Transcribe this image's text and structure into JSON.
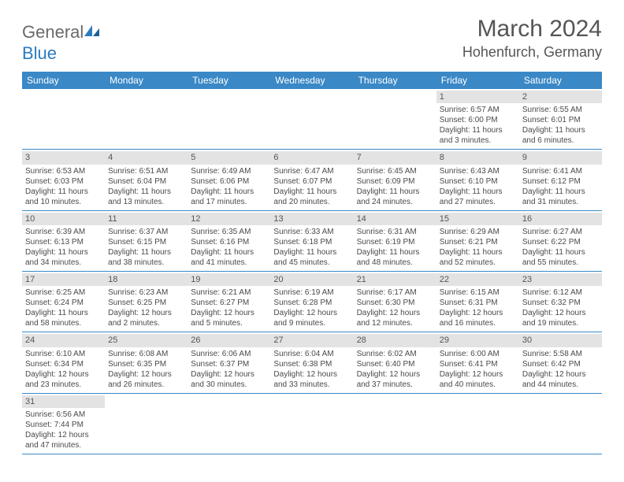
{
  "logo": {
    "text_general": "General",
    "text_blue": "Blue"
  },
  "header": {
    "month": "March 2024",
    "location": "Hohenfurch, Germany"
  },
  "colors": {
    "header_bg": "#3a88c6",
    "header_text": "#ffffff",
    "daynum_bg": "#e3e3e3",
    "row_border": "#3a88c6",
    "brand_grey": "#6a6a6a",
    "brand_blue": "#2b7bbf"
  },
  "columns": [
    "Sunday",
    "Monday",
    "Tuesday",
    "Wednesday",
    "Thursday",
    "Friday",
    "Saturday"
  ],
  "weeks": [
    [
      {
        "n": "",
        "sr": "",
        "ss": "",
        "dl": ""
      },
      {
        "n": "",
        "sr": "",
        "ss": "",
        "dl": ""
      },
      {
        "n": "",
        "sr": "",
        "ss": "",
        "dl": ""
      },
      {
        "n": "",
        "sr": "",
        "ss": "",
        "dl": ""
      },
      {
        "n": "",
        "sr": "",
        "ss": "",
        "dl": ""
      },
      {
        "n": "1",
        "sr": "Sunrise: 6:57 AM",
        "ss": "Sunset: 6:00 PM",
        "dl": "Daylight: 11 hours and 3 minutes."
      },
      {
        "n": "2",
        "sr": "Sunrise: 6:55 AM",
        "ss": "Sunset: 6:01 PM",
        "dl": "Daylight: 11 hours and 6 minutes."
      }
    ],
    [
      {
        "n": "3",
        "sr": "Sunrise: 6:53 AM",
        "ss": "Sunset: 6:03 PM",
        "dl": "Daylight: 11 hours and 10 minutes."
      },
      {
        "n": "4",
        "sr": "Sunrise: 6:51 AM",
        "ss": "Sunset: 6:04 PM",
        "dl": "Daylight: 11 hours and 13 minutes."
      },
      {
        "n": "5",
        "sr": "Sunrise: 6:49 AM",
        "ss": "Sunset: 6:06 PM",
        "dl": "Daylight: 11 hours and 17 minutes."
      },
      {
        "n": "6",
        "sr": "Sunrise: 6:47 AM",
        "ss": "Sunset: 6:07 PM",
        "dl": "Daylight: 11 hours and 20 minutes."
      },
      {
        "n": "7",
        "sr": "Sunrise: 6:45 AM",
        "ss": "Sunset: 6:09 PM",
        "dl": "Daylight: 11 hours and 24 minutes."
      },
      {
        "n": "8",
        "sr": "Sunrise: 6:43 AM",
        "ss": "Sunset: 6:10 PM",
        "dl": "Daylight: 11 hours and 27 minutes."
      },
      {
        "n": "9",
        "sr": "Sunrise: 6:41 AM",
        "ss": "Sunset: 6:12 PM",
        "dl": "Daylight: 11 hours and 31 minutes."
      }
    ],
    [
      {
        "n": "10",
        "sr": "Sunrise: 6:39 AM",
        "ss": "Sunset: 6:13 PM",
        "dl": "Daylight: 11 hours and 34 minutes."
      },
      {
        "n": "11",
        "sr": "Sunrise: 6:37 AM",
        "ss": "Sunset: 6:15 PM",
        "dl": "Daylight: 11 hours and 38 minutes."
      },
      {
        "n": "12",
        "sr": "Sunrise: 6:35 AM",
        "ss": "Sunset: 6:16 PM",
        "dl": "Daylight: 11 hours and 41 minutes."
      },
      {
        "n": "13",
        "sr": "Sunrise: 6:33 AM",
        "ss": "Sunset: 6:18 PM",
        "dl": "Daylight: 11 hours and 45 minutes."
      },
      {
        "n": "14",
        "sr": "Sunrise: 6:31 AM",
        "ss": "Sunset: 6:19 PM",
        "dl": "Daylight: 11 hours and 48 minutes."
      },
      {
        "n": "15",
        "sr": "Sunrise: 6:29 AM",
        "ss": "Sunset: 6:21 PM",
        "dl": "Daylight: 11 hours and 52 minutes."
      },
      {
        "n": "16",
        "sr": "Sunrise: 6:27 AM",
        "ss": "Sunset: 6:22 PM",
        "dl": "Daylight: 11 hours and 55 minutes."
      }
    ],
    [
      {
        "n": "17",
        "sr": "Sunrise: 6:25 AM",
        "ss": "Sunset: 6:24 PM",
        "dl": "Daylight: 11 hours and 58 minutes."
      },
      {
        "n": "18",
        "sr": "Sunrise: 6:23 AM",
        "ss": "Sunset: 6:25 PM",
        "dl": "Daylight: 12 hours and 2 minutes."
      },
      {
        "n": "19",
        "sr": "Sunrise: 6:21 AM",
        "ss": "Sunset: 6:27 PM",
        "dl": "Daylight: 12 hours and 5 minutes."
      },
      {
        "n": "20",
        "sr": "Sunrise: 6:19 AM",
        "ss": "Sunset: 6:28 PM",
        "dl": "Daylight: 12 hours and 9 minutes."
      },
      {
        "n": "21",
        "sr": "Sunrise: 6:17 AM",
        "ss": "Sunset: 6:30 PM",
        "dl": "Daylight: 12 hours and 12 minutes."
      },
      {
        "n": "22",
        "sr": "Sunrise: 6:15 AM",
        "ss": "Sunset: 6:31 PM",
        "dl": "Daylight: 12 hours and 16 minutes."
      },
      {
        "n": "23",
        "sr": "Sunrise: 6:12 AM",
        "ss": "Sunset: 6:32 PM",
        "dl": "Daylight: 12 hours and 19 minutes."
      }
    ],
    [
      {
        "n": "24",
        "sr": "Sunrise: 6:10 AM",
        "ss": "Sunset: 6:34 PM",
        "dl": "Daylight: 12 hours and 23 minutes."
      },
      {
        "n": "25",
        "sr": "Sunrise: 6:08 AM",
        "ss": "Sunset: 6:35 PM",
        "dl": "Daylight: 12 hours and 26 minutes."
      },
      {
        "n": "26",
        "sr": "Sunrise: 6:06 AM",
        "ss": "Sunset: 6:37 PM",
        "dl": "Daylight: 12 hours and 30 minutes."
      },
      {
        "n": "27",
        "sr": "Sunrise: 6:04 AM",
        "ss": "Sunset: 6:38 PM",
        "dl": "Daylight: 12 hours and 33 minutes."
      },
      {
        "n": "28",
        "sr": "Sunrise: 6:02 AM",
        "ss": "Sunset: 6:40 PM",
        "dl": "Daylight: 12 hours and 37 minutes."
      },
      {
        "n": "29",
        "sr": "Sunrise: 6:00 AM",
        "ss": "Sunset: 6:41 PM",
        "dl": "Daylight: 12 hours and 40 minutes."
      },
      {
        "n": "30",
        "sr": "Sunrise: 5:58 AM",
        "ss": "Sunset: 6:42 PM",
        "dl": "Daylight: 12 hours and 44 minutes."
      }
    ],
    [
      {
        "n": "31",
        "sr": "Sunrise: 6:56 AM",
        "ss": "Sunset: 7:44 PM",
        "dl": "Daylight: 12 hours and 47 minutes."
      },
      {
        "n": "",
        "sr": "",
        "ss": "",
        "dl": ""
      },
      {
        "n": "",
        "sr": "",
        "ss": "",
        "dl": ""
      },
      {
        "n": "",
        "sr": "",
        "ss": "",
        "dl": ""
      },
      {
        "n": "",
        "sr": "",
        "ss": "",
        "dl": ""
      },
      {
        "n": "",
        "sr": "",
        "ss": "",
        "dl": ""
      },
      {
        "n": "",
        "sr": "",
        "ss": "",
        "dl": ""
      }
    ]
  ]
}
